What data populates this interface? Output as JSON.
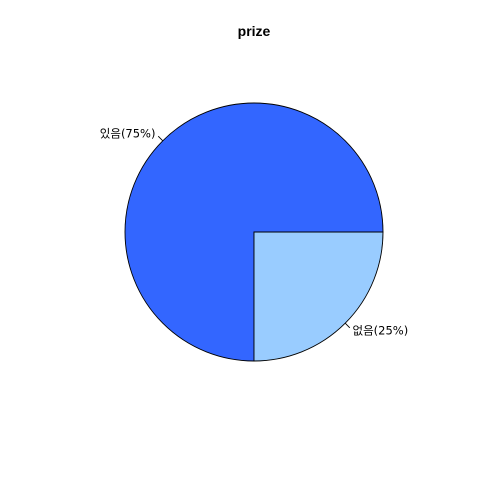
{
  "chart_data": {
    "type": "pie",
    "title": "prize",
    "slices": [
      {
        "name": "있음",
        "value": 75,
        "label": "있음(75%)",
        "color": "#3366FF"
      },
      {
        "name": "없음",
        "value": 25,
        "label": "없음(25%)",
        "color": "#99CCFF"
      }
    ],
    "start_angle_deg": 0,
    "direction": "counterclockwise",
    "border_color": "#000000",
    "background": "#FFFFFF"
  }
}
